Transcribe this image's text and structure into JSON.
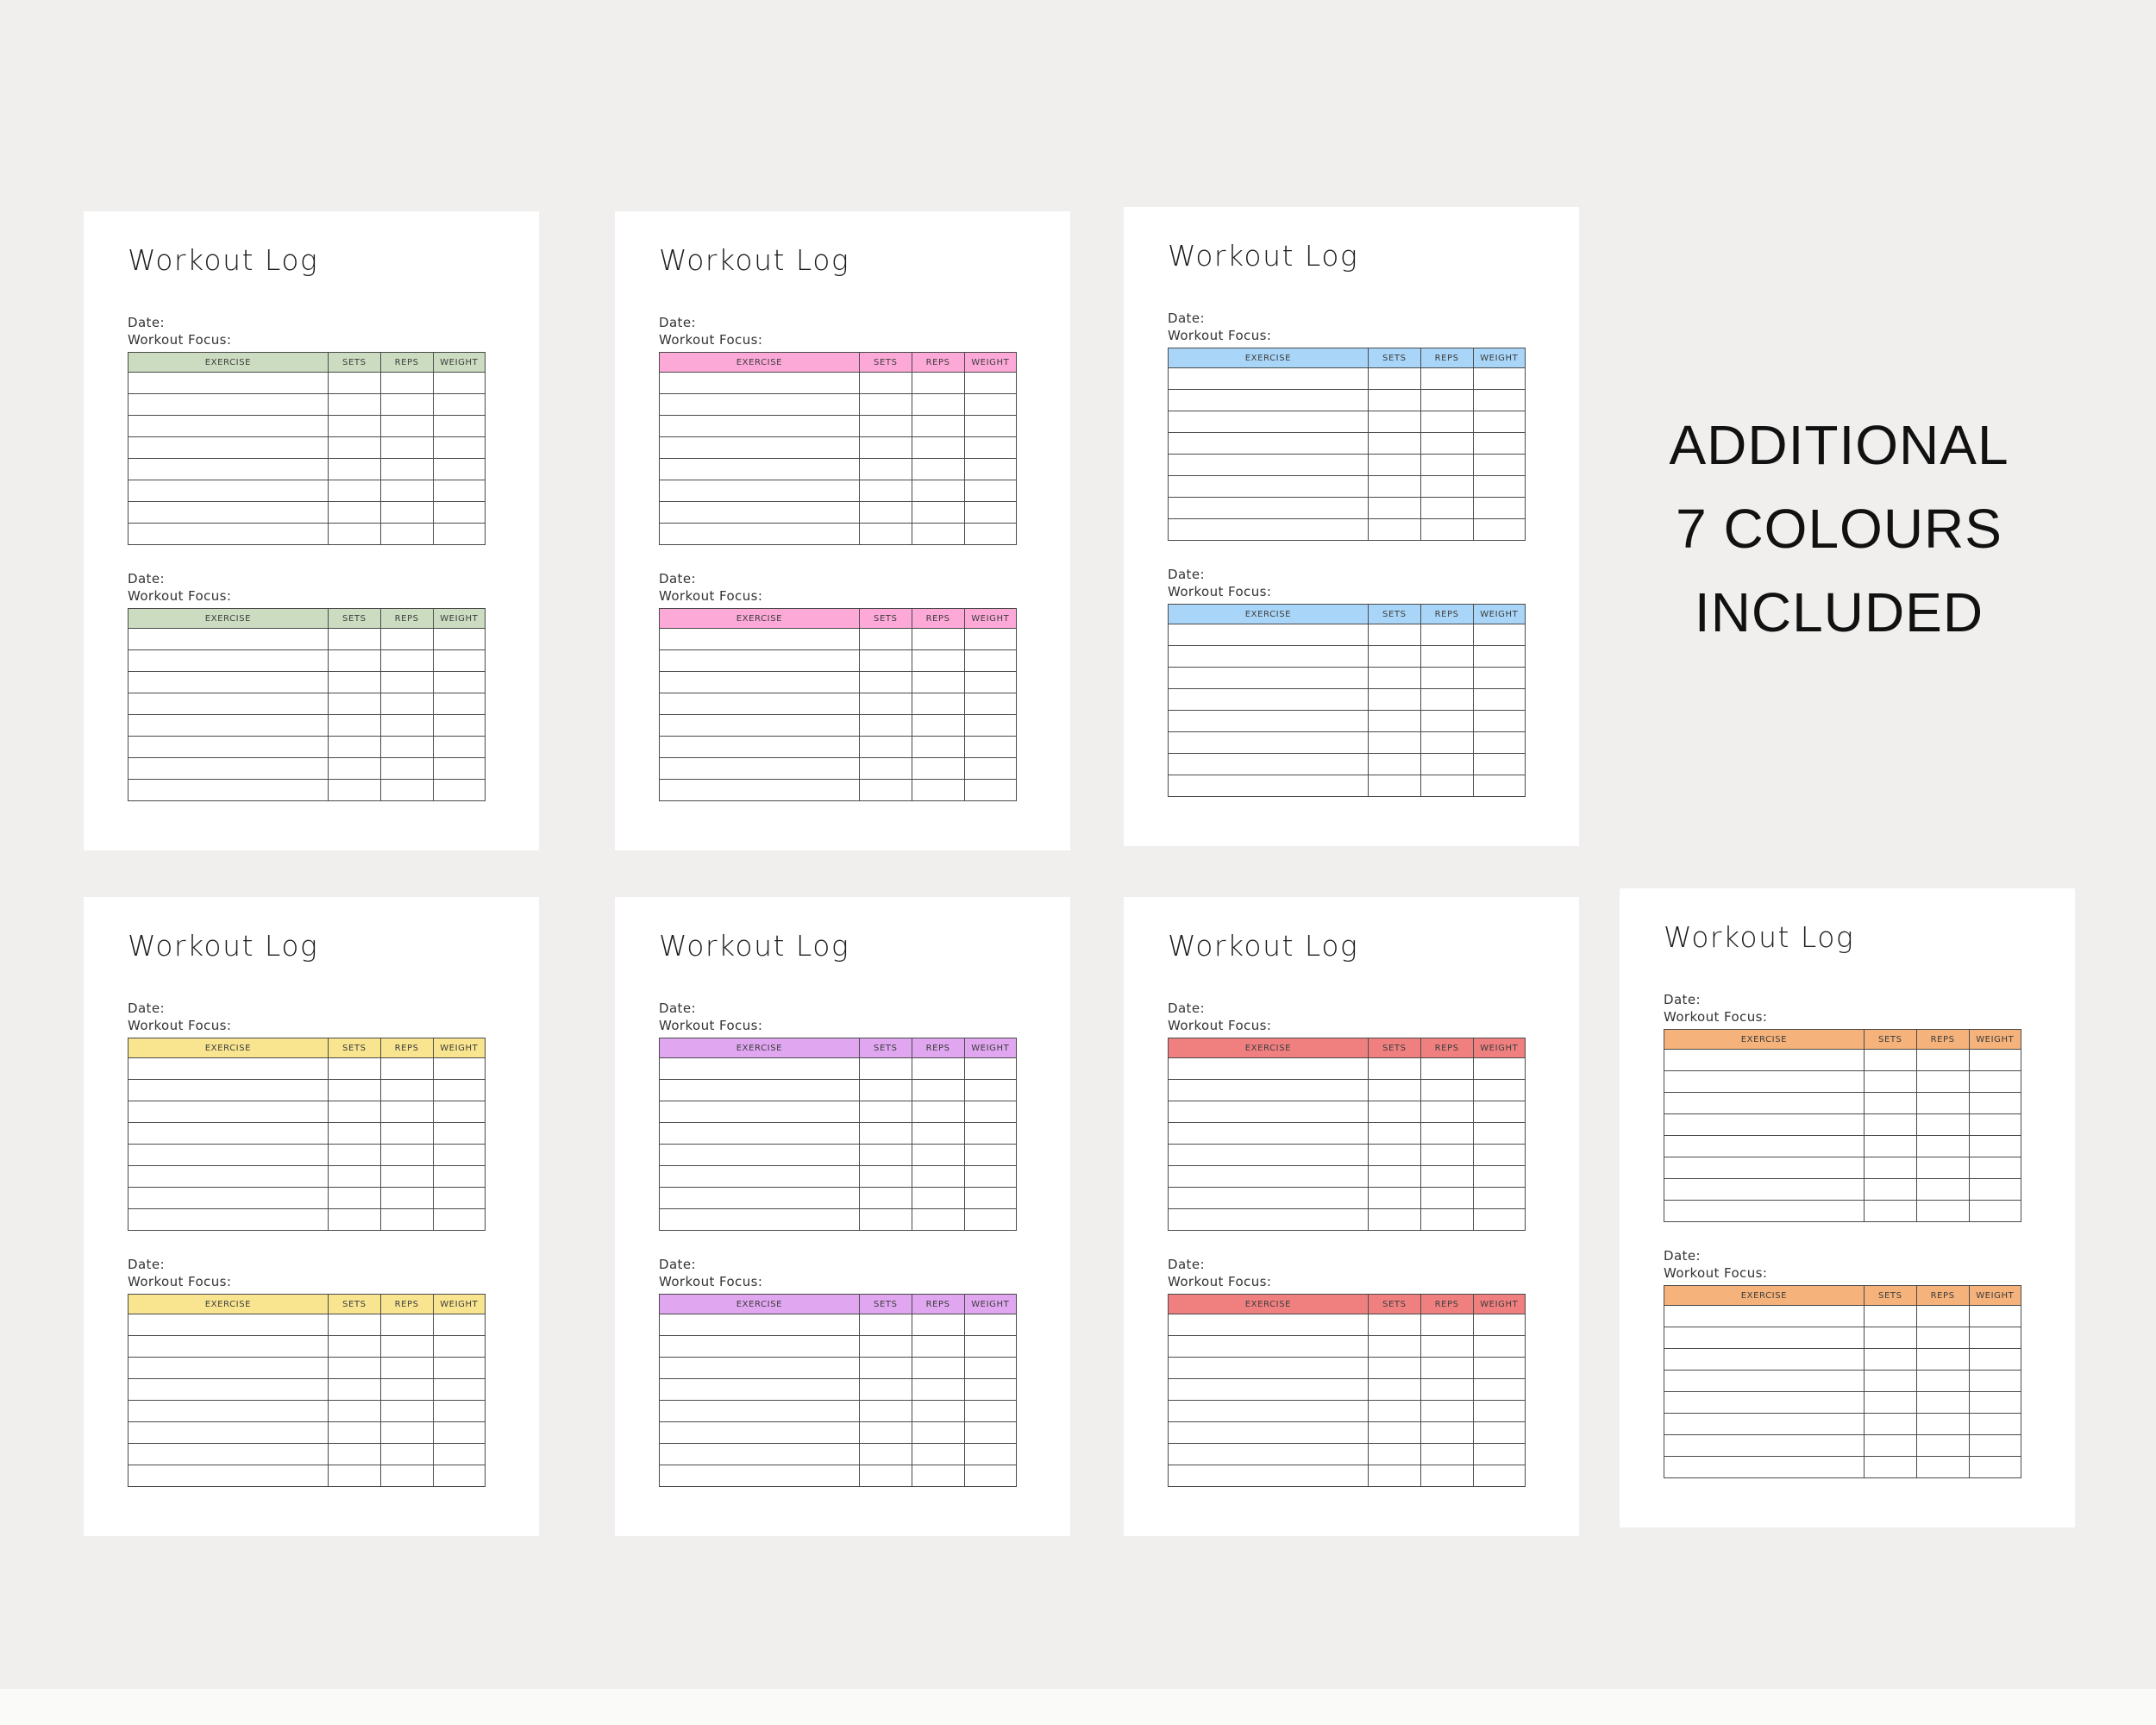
{
  "background": {
    "canvas_color": "#f0efee",
    "page_color": "#ffffff",
    "bottom_strip_color": "#fafaf9"
  },
  "note": {
    "lines": [
      "ADDITIONAL",
      "7 COLOURS",
      "INCLUDED"
    ],
    "color": "#111111"
  },
  "template": {
    "title": "Workout Log",
    "date_label": "Date:",
    "focus_label": "Workout Focus:",
    "columns": [
      "EXERCISE",
      "SETS",
      "REPS",
      "WEIGHT"
    ],
    "rows_per_table": 8,
    "tables_per_page": 2,
    "cells_empty_value": ""
  },
  "pages": [
    {
      "id": "green",
      "header_color": "#cbdcc1"
    },
    {
      "id": "pink",
      "header_color": "#fda9d8"
    },
    {
      "id": "blue",
      "header_color": "#a9d6f8"
    },
    {
      "id": "yellow",
      "header_color": "#f9e590"
    },
    {
      "id": "purple",
      "header_color": "#e0a6f0"
    },
    {
      "id": "red",
      "header_color": "#f08080"
    },
    {
      "id": "orange",
      "header_color": "#f5b27b"
    }
  ]
}
